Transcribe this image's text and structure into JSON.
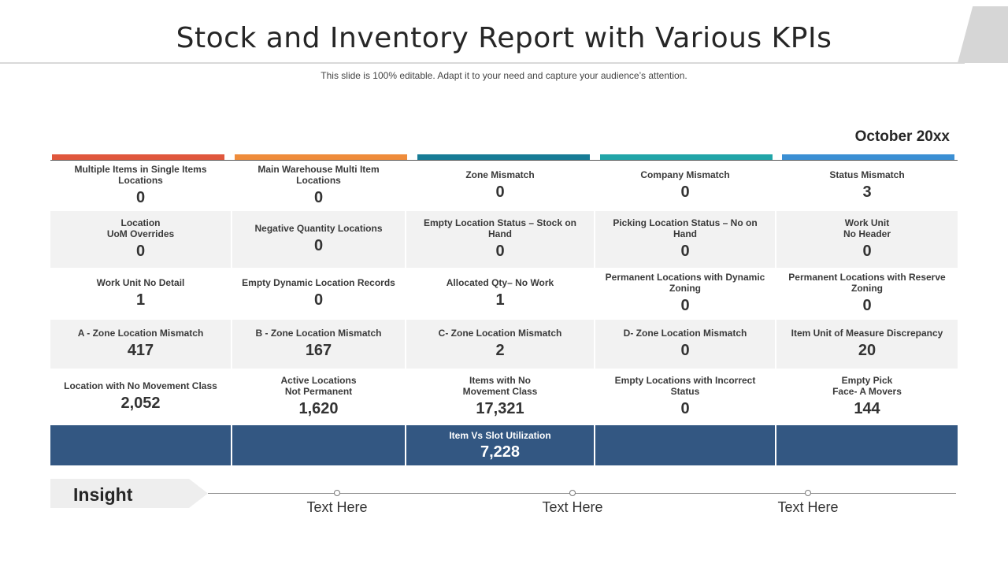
{
  "header": {
    "title": "Stock and Inventory Report with Various KPIs",
    "subtitle": "This slide is 100% editable. Adapt it to your need and capture your audience’s attention."
  },
  "report": {
    "date": "October 20xx",
    "column_colors": [
      "#e0573d",
      "#ef8c3b",
      "#177c96",
      "#21a5a8",
      "#3b8fd4"
    ],
    "rows": [
      {
        "cells": [
          {
            "label": "Multiple Items in Single Items\nLocations",
            "value": "0"
          },
          {
            "label": "Main Warehouse Multi Item\nLocations",
            "value": "0"
          },
          {
            "label": "Zone Mismatch",
            "value": "0"
          },
          {
            "label": "Company Mismatch",
            "value": "0"
          },
          {
            "label": "Status Mismatch",
            "value": "3"
          }
        ]
      },
      {
        "cells": [
          {
            "label": "Location\nUoM Overrides",
            "value": "0"
          },
          {
            "label": "Negative Quantity Locations",
            "value": "0"
          },
          {
            "label": "Empty Location Status – Stock on\nHand",
            "value": "0"
          },
          {
            "label": "Picking Location Status – No on\nHand",
            "value": "0"
          },
          {
            "label": "Work Unit\nNo Header",
            "value": "0"
          }
        ]
      },
      {
        "cells": [
          {
            "label": "Work Unit No Detail",
            "value": "1"
          },
          {
            "label": "Empty Dynamic Location Records",
            "value": "0"
          },
          {
            "label": "Allocated Qty– No Work",
            "value": "1"
          },
          {
            "label": "Permanent Locations with Dynamic\nZoning",
            "value": "0"
          },
          {
            "label": "Permanent Locations with Reserve\nZoning",
            "value": "0"
          }
        ]
      },
      {
        "cells": [
          {
            "label": "A - Zone Location Mismatch",
            "value": "417"
          },
          {
            "label": "B - Zone Location Mismatch",
            "value": "167"
          },
          {
            "label": "C- Zone Location Mismatch",
            "value": "2"
          },
          {
            "label": "D- Zone Location Mismatch",
            "value": "0"
          },
          {
            "label": "Item Unit of Measure Discrepancy",
            "value": "20"
          }
        ]
      },
      {
        "cells": [
          {
            "label": "Location with No Movement Class",
            "value": "2,052"
          },
          {
            "label": "Active Locations\nNot Permanent",
            "value": "1,620"
          },
          {
            "label": "Items with No\nMovement Class",
            "value": "17,321"
          },
          {
            "label": "Empty Locations with Incorrect\nStatus",
            "value": "0"
          },
          {
            "label": "Empty Pick\nFace- A Movers",
            "value": "144"
          }
        ]
      }
    ],
    "utilization": {
      "label": "Item Vs Slot Utilization",
      "value": "7,228",
      "color": "#335782"
    }
  },
  "insight": {
    "label": "Insight",
    "points": [
      {
        "text": "Text Here"
      },
      {
        "text": "Text Here"
      },
      {
        "text": "Text Here"
      }
    ]
  }
}
